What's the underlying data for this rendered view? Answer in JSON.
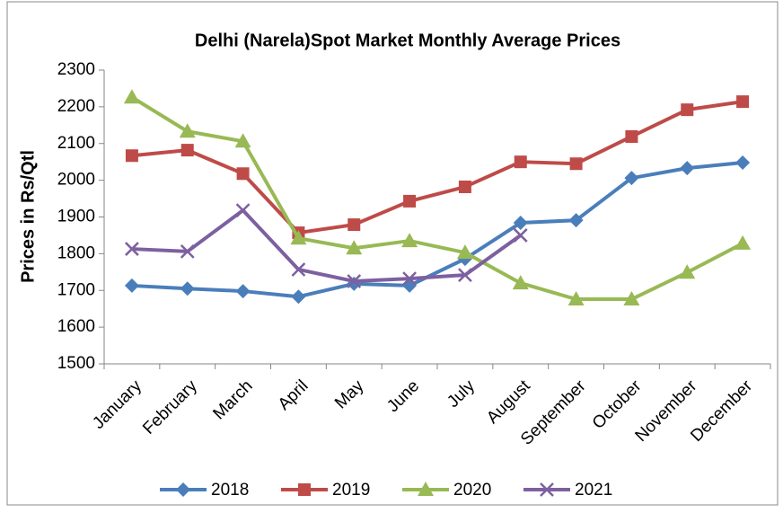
{
  "chart_data": {
    "type": "line",
    "title": "Delhi (Narela)Spot Market Monthly Average Prices",
    "y_label": "Prices in Rs/Qtl",
    "categories": [
      "January",
      "February",
      "March",
      "April",
      "May",
      "June",
      "July",
      "August",
      "September",
      "October",
      "November",
      "December"
    ],
    "series": [
      {
        "name": "2018",
        "color": "#4a7ebb",
        "marker": "diamond",
        "values": [
          1713,
          1705,
          1698,
          1683,
          1718,
          1713,
          1786,
          1884,
          1891,
          2006,
          2033,
          2048
        ]
      },
      {
        "name": "2019",
        "color": "#be4b48",
        "marker": "square",
        "values": [
          2067,
          2082,
          2018,
          1857,
          1879,
          1943,
          1982,
          2050,
          2045,
          2119,
          2192,
          2214
        ]
      },
      {
        "name": "2020",
        "color": "#98b954",
        "marker": "triangle",
        "values": [
          2226,
          2133,
          2106,
          1842,
          1815,
          1835,
          1803,
          1720,
          1676,
          1676,
          1749,
          1828
        ]
      },
      {
        "name": "2021",
        "color": "#7d60a0",
        "marker": "x",
        "values": [
          1813,
          1806,
          1918,
          1757,
          1725,
          1732,
          1742,
          1850,
          null,
          null,
          null,
          null
        ]
      }
    ],
    "ylim": [
      1500,
      2300
    ],
    "yticks": [
      1500,
      1600,
      1700,
      1800,
      1900,
      2000,
      2100,
      2200,
      2300
    ],
    "grid": false,
    "legend": "bottom"
  }
}
